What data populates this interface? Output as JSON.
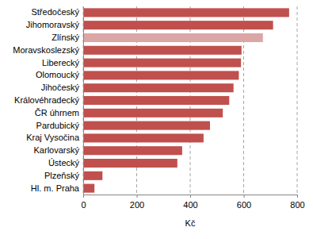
{
  "chart_data": {
    "type": "bar",
    "orientation": "horizontal",
    "categories": [
      "Středočeský",
      "Jihomoravský",
      "Zlínský",
      "Moravskoslezský",
      "Liberecký",
      "Olomoucký",
      "Jihočeský",
      "Královéhradecký",
      "ČR úhrnem",
      "Pardubický",
      "Kraj Vysočina",
      "Karlovarský",
      "Ústecký",
      "Plzeňský",
      "Hl. m. Praha"
    ],
    "values": [
      770,
      710,
      672,
      592,
      590,
      582,
      562,
      546,
      522,
      474,
      450,
      370,
      352,
      72,
      42
    ],
    "colors": [
      "#c0504d",
      "#c0504d",
      "#dba7a6",
      "#c0504d",
      "#c0504d",
      "#c0504d",
      "#c0504d",
      "#c0504d",
      "#c0504d",
      "#c0504d",
      "#c0504d",
      "#c0504d",
      "#c0504d",
      "#c0504d",
      "#c0504d"
    ],
    "x_label": "Kč",
    "xlim": [
      0,
      800
    ],
    "xticks": [
      0,
      200,
      400,
      600,
      800
    ],
    "grid": true
  }
}
